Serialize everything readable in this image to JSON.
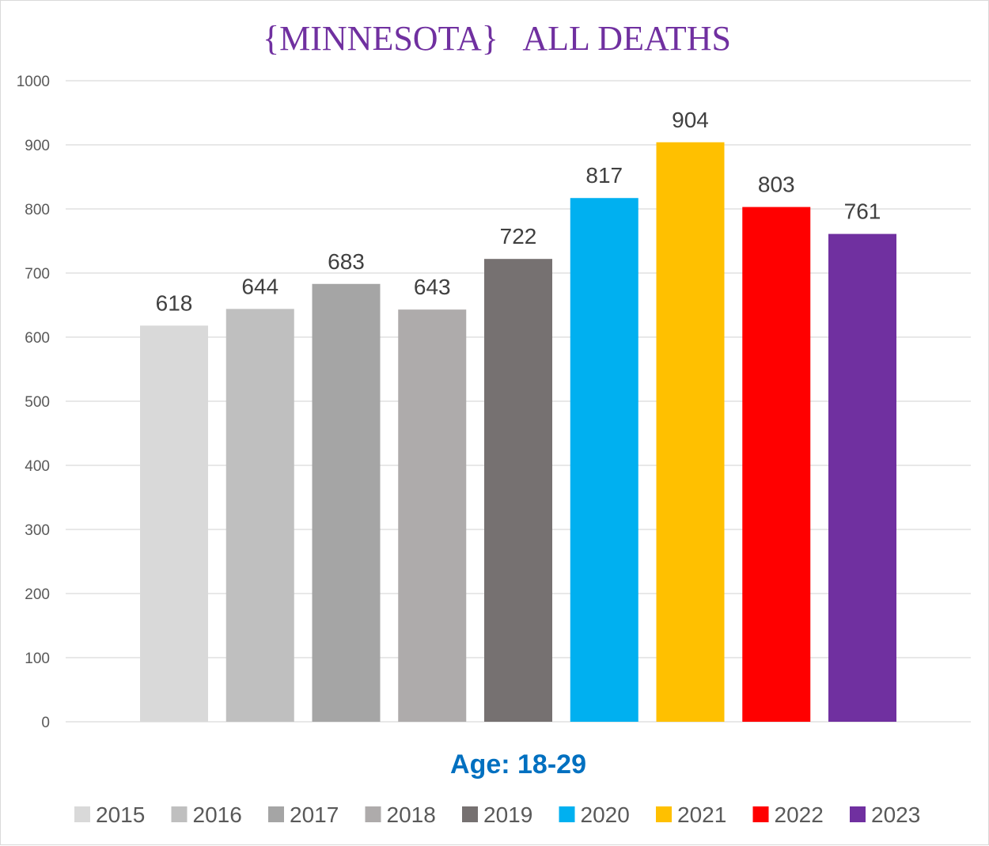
{
  "chart_data": {
    "type": "bar",
    "title": "{MINNESOTA}   ALL DEATHS",
    "xlabel": "Age: 18-29",
    "ylabel": "",
    "ylim": [
      0,
      1000
    ],
    "yticks": [
      0,
      100,
      200,
      300,
      400,
      500,
      600,
      700,
      800,
      900,
      1000
    ],
    "grid": true,
    "legend_position": "bottom",
    "categories": [
      "2015",
      "2016",
      "2017",
      "2018",
      "2019",
      "2020",
      "2021",
      "2022",
      "2023"
    ],
    "values": [
      618,
      644,
      683,
      643,
      722,
      817,
      904,
      803,
      761
    ],
    "colors": [
      "#d9d9d9",
      "#bfbfbf",
      "#a5a5a5",
      "#aeabab",
      "#767171",
      "#00b0f0",
      "#ffc000",
      "#ff0000",
      "#7030a0"
    ]
  }
}
